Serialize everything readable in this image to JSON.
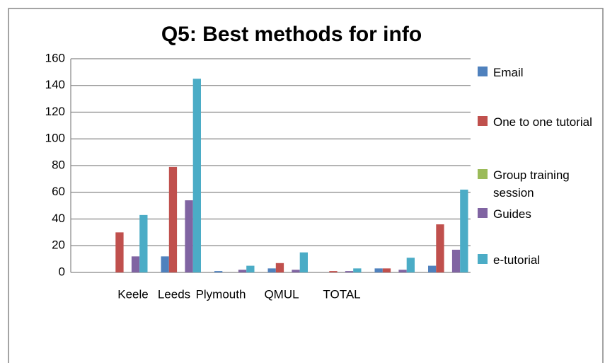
{
  "chart_data": {
    "type": "bar",
    "title": "Q5: Best methods for info",
    "categories": [
      "Keele",
      "Leeds",
      "Plymouth",
      "QMUL",
      "TOTAL",
      null,
      null
    ],
    "series": [
      {
        "name": "Email",
        "color": "#4f81bd",
        "values": [
          0,
          12,
          1,
          3,
          0,
          3,
          5
        ]
      },
      {
        "name": "One to one tutorial",
        "color": "#c0504d",
        "values": [
          30,
          79,
          0,
          7,
          1,
          3,
          36
        ]
      },
      {
        "name": "Group training session",
        "color": "#9bbb59",
        "values": [
          0,
          0,
          0,
          0,
          0,
          0,
          0
        ]
      },
      {
        "name": "Guides",
        "color": "#8064a2",
        "values": [
          12,
          54,
          2,
          2,
          1,
          2,
          17
        ]
      },
      {
        "name": "e-tutorial",
        "color": "#4bacc6",
        "values": [
          43,
          145,
          5,
          15,
          3,
          11,
          62
        ]
      }
    ],
    "ylim": [
      0,
      160
    ],
    "yticks": [
      0,
      20,
      40,
      60,
      80,
      100,
      120,
      140,
      160
    ],
    "grid": true,
    "legend": "right"
  }
}
